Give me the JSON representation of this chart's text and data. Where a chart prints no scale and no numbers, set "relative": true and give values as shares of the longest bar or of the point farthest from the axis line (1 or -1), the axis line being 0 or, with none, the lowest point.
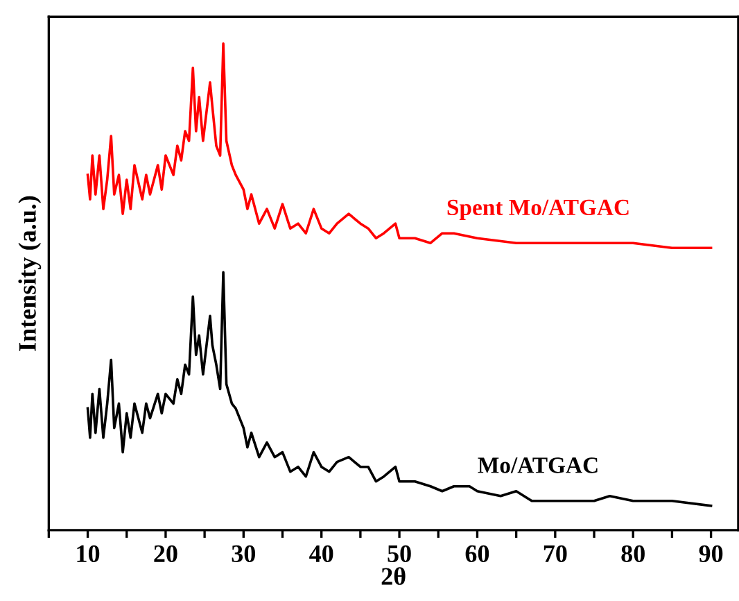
{
  "chart_data": {
    "type": "line",
    "xlabel": "2θ",
    "ylabel": "Intensity (a.u.)",
    "relative": true,
    "tick_labels": "x",
    "grid": false,
    "legend": false,
    "marker": "none",
    "line_style": "solid",
    "xlim": [
      5,
      93.5
    ],
    "xticks": [
      {
        "value": 5,
        "label": null
      },
      10,
      {
        "value": 15,
        "label": null
      },
      20,
      {
        "value": 25,
        "label": null
      },
      30,
      {
        "value": 35,
        "label": null
      },
      40,
      {
        "value": 45,
        "label": null
      },
      50,
      {
        "value": 55,
        "label": null
      },
      60,
      {
        "value": 65,
        "label": null
      },
      70,
      {
        "value": 75,
        "label": null
      },
      80,
      {
        "value": 85,
        "label": null
      },
      90
    ],
    "series": [
      {
        "name": "Spent Mo/ATGAC",
        "color": "#ff0000",
        "x": [
          10,
          10.3,
          10.6,
          11,
          11.5,
          12,
          12.5,
          13,
          13.4,
          14,
          14.5,
          15,
          15.5,
          16,
          17,
          17.5,
          18,
          19,
          19.5,
          20,
          21,
          21.5,
          22,
          22.5,
          23,
          23.5,
          23.9,
          24.3,
          24.8,
          25.7,
          26,
          26.5,
          27,
          27.4,
          27.8,
          28.5,
          29,
          30,
          30.5,
          31,
          32,
          33,
          34,
          35,
          36,
          37,
          38,
          39,
          40,
          41,
          42,
          43.5,
          45,
          46,
          47,
          48,
          49.5,
          50,
          52,
          54,
          55.5,
          57,
          60,
          65,
          70,
          75,
          80,
          85,
          90
        ],
        "values": [
          0.73,
          0.68,
          0.77,
          0.69,
          0.77,
          0.66,
          0.72,
          0.81,
          0.69,
          0.73,
          0.65,
          0.72,
          0.66,
          0.75,
          0.68,
          0.73,
          0.69,
          0.75,
          0.7,
          0.77,
          0.73,
          0.79,
          0.76,
          0.82,
          0.8,
          0.95,
          0.82,
          0.89,
          0.8,
          0.92,
          0.87,
          0.79,
          0.77,
          1.0,
          0.8,
          0.75,
          0.73,
          0.7,
          0.66,
          0.69,
          0.63,
          0.66,
          0.62,
          0.67,
          0.62,
          0.63,
          0.61,
          0.66,
          0.62,
          0.61,
          0.63,
          0.65,
          0.63,
          0.62,
          0.6,
          0.61,
          0.63,
          0.6,
          0.6,
          0.59,
          0.61,
          0.61,
          0.6,
          0.59,
          0.59,
          0.59,
          0.59,
          0.58,
          0.58
        ]
      },
      {
        "name": "Mo/ATGAC",
        "color": "#000000",
        "x": [
          10,
          10.3,
          10.6,
          11,
          11.5,
          12,
          12.5,
          13,
          13.4,
          14,
          14.5,
          15,
          15.5,
          16,
          17,
          17.5,
          18,
          19,
          19.5,
          20,
          21,
          21.5,
          22,
          22.5,
          23,
          23.5,
          23.9,
          24.3,
          24.8,
          25.7,
          26,
          26.5,
          27,
          27.4,
          27.8,
          28.5,
          29,
          30,
          30.5,
          31,
          32,
          33,
          34,
          35,
          36,
          37,
          38,
          39,
          40,
          41,
          42,
          43.5,
          45,
          46,
          47,
          48,
          49.5,
          50,
          52,
          54,
          55.5,
          57,
          59,
          60,
          63,
          65,
          67,
          70,
          75,
          77,
          80,
          85,
          90
        ],
        "values": [
          0.25,
          0.19,
          0.28,
          0.2,
          0.29,
          0.19,
          0.26,
          0.35,
          0.21,
          0.26,
          0.16,
          0.24,
          0.19,
          0.26,
          0.2,
          0.26,
          0.23,
          0.28,
          0.24,
          0.28,
          0.26,
          0.31,
          0.28,
          0.34,
          0.32,
          0.48,
          0.36,
          0.4,
          0.32,
          0.44,
          0.38,
          0.34,
          0.29,
          0.53,
          0.3,
          0.26,
          0.25,
          0.21,
          0.17,
          0.2,
          0.15,
          0.18,
          0.15,
          0.16,
          0.12,
          0.13,
          0.11,
          0.16,
          0.13,
          0.12,
          0.14,
          0.15,
          0.13,
          0.13,
          0.1,
          0.11,
          0.13,
          0.1,
          0.1,
          0.09,
          0.08,
          0.09,
          0.09,
          0.08,
          0.07,
          0.08,
          0.06,
          0.06,
          0.06,
          0.07,
          0.06,
          0.06,
          0.05
        ]
      }
    ]
  }
}
